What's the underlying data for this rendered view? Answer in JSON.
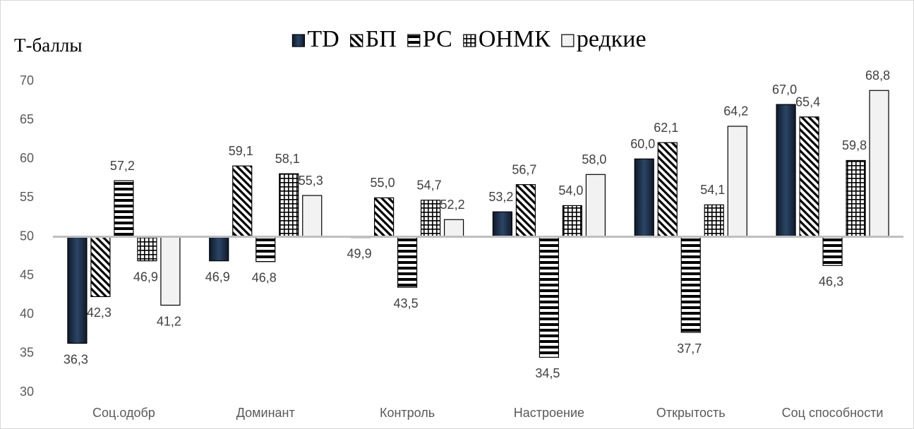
{
  "chart_data": {
    "type": "bar",
    "y_label": "Т-баллы",
    "categories": [
      "Соц.одобр",
      "Доминант",
      "Контроль",
      "Настроение",
      "Открытость",
      "Соц способности"
    ],
    "series": [
      {
        "name": "TD",
        "color": "#1f3550",
        "pattern": "solid",
        "values": [
          36.3,
          46.9,
          49.9,
          53.2,
          60.0,
          67.0
        ],
        "value_labels": [
          "36,3",
          "46,9",
          "49,9",
          "53,2",
          "60,0",
          "67,0"
        ]
      },
      {
        "name": "БП",
        "color": "#000000",
        "pattern": "diagonal",
        "values": [
          42.3,
          59.1,
          55.0,
          56.7,
          62.1,
          65.4
        ],
        "value_labels": [
          "42,3",
          "59,1",
          "55,0",
          "56,7",
          "62,1",
          "65,4"
        ]
      },
      {
        "name": "РС",
        "color": "#000000",
        "pattern": "horizontal",
        "values": [
          57.2,
          46.8,
          43.5,
          34.5,
          37.7,
          46.3
        ],
        "value_labels": [
          "57,2",
          "46,8",
          "43,5",
          "34,5",
          "37,7",
          "46,3"
        ]
      },
      {
        "name": "ОНМК",
        "color": "#000000",
        "pattern": "grid",
        "values": [
          46.9,
          58.1,
          54.7,
          54.0,
          54.1,
          59.8
        ],
        "value_labels": [
          "46,9",
          "58,1",
          "54,7",
          "54,0",
          "54,1",
          "59,8"
        ]
      },
      {
        "name": "редкие",
        "color": "#f2f2f2",
        "pattern": "solid",
        "values": [
          41.2,
          55.3,
          52.2,
          58.0,
          64.2,
          68.8
        ],
        "value_labels": [
          "41,2",
          "55,3",
          "52,2",
          "58,0",
          "64,2",
          "68,8"
        ]
      }
    ],
    "ylim": [
      30,
      70
    ],
    "yticks": [
      30,
      35,
      40,
      45,
      50,
      55,
      60,
      65,
      70
    ],
    "x_axis_crosses": 50,
    "legend": "top"
  }
}
